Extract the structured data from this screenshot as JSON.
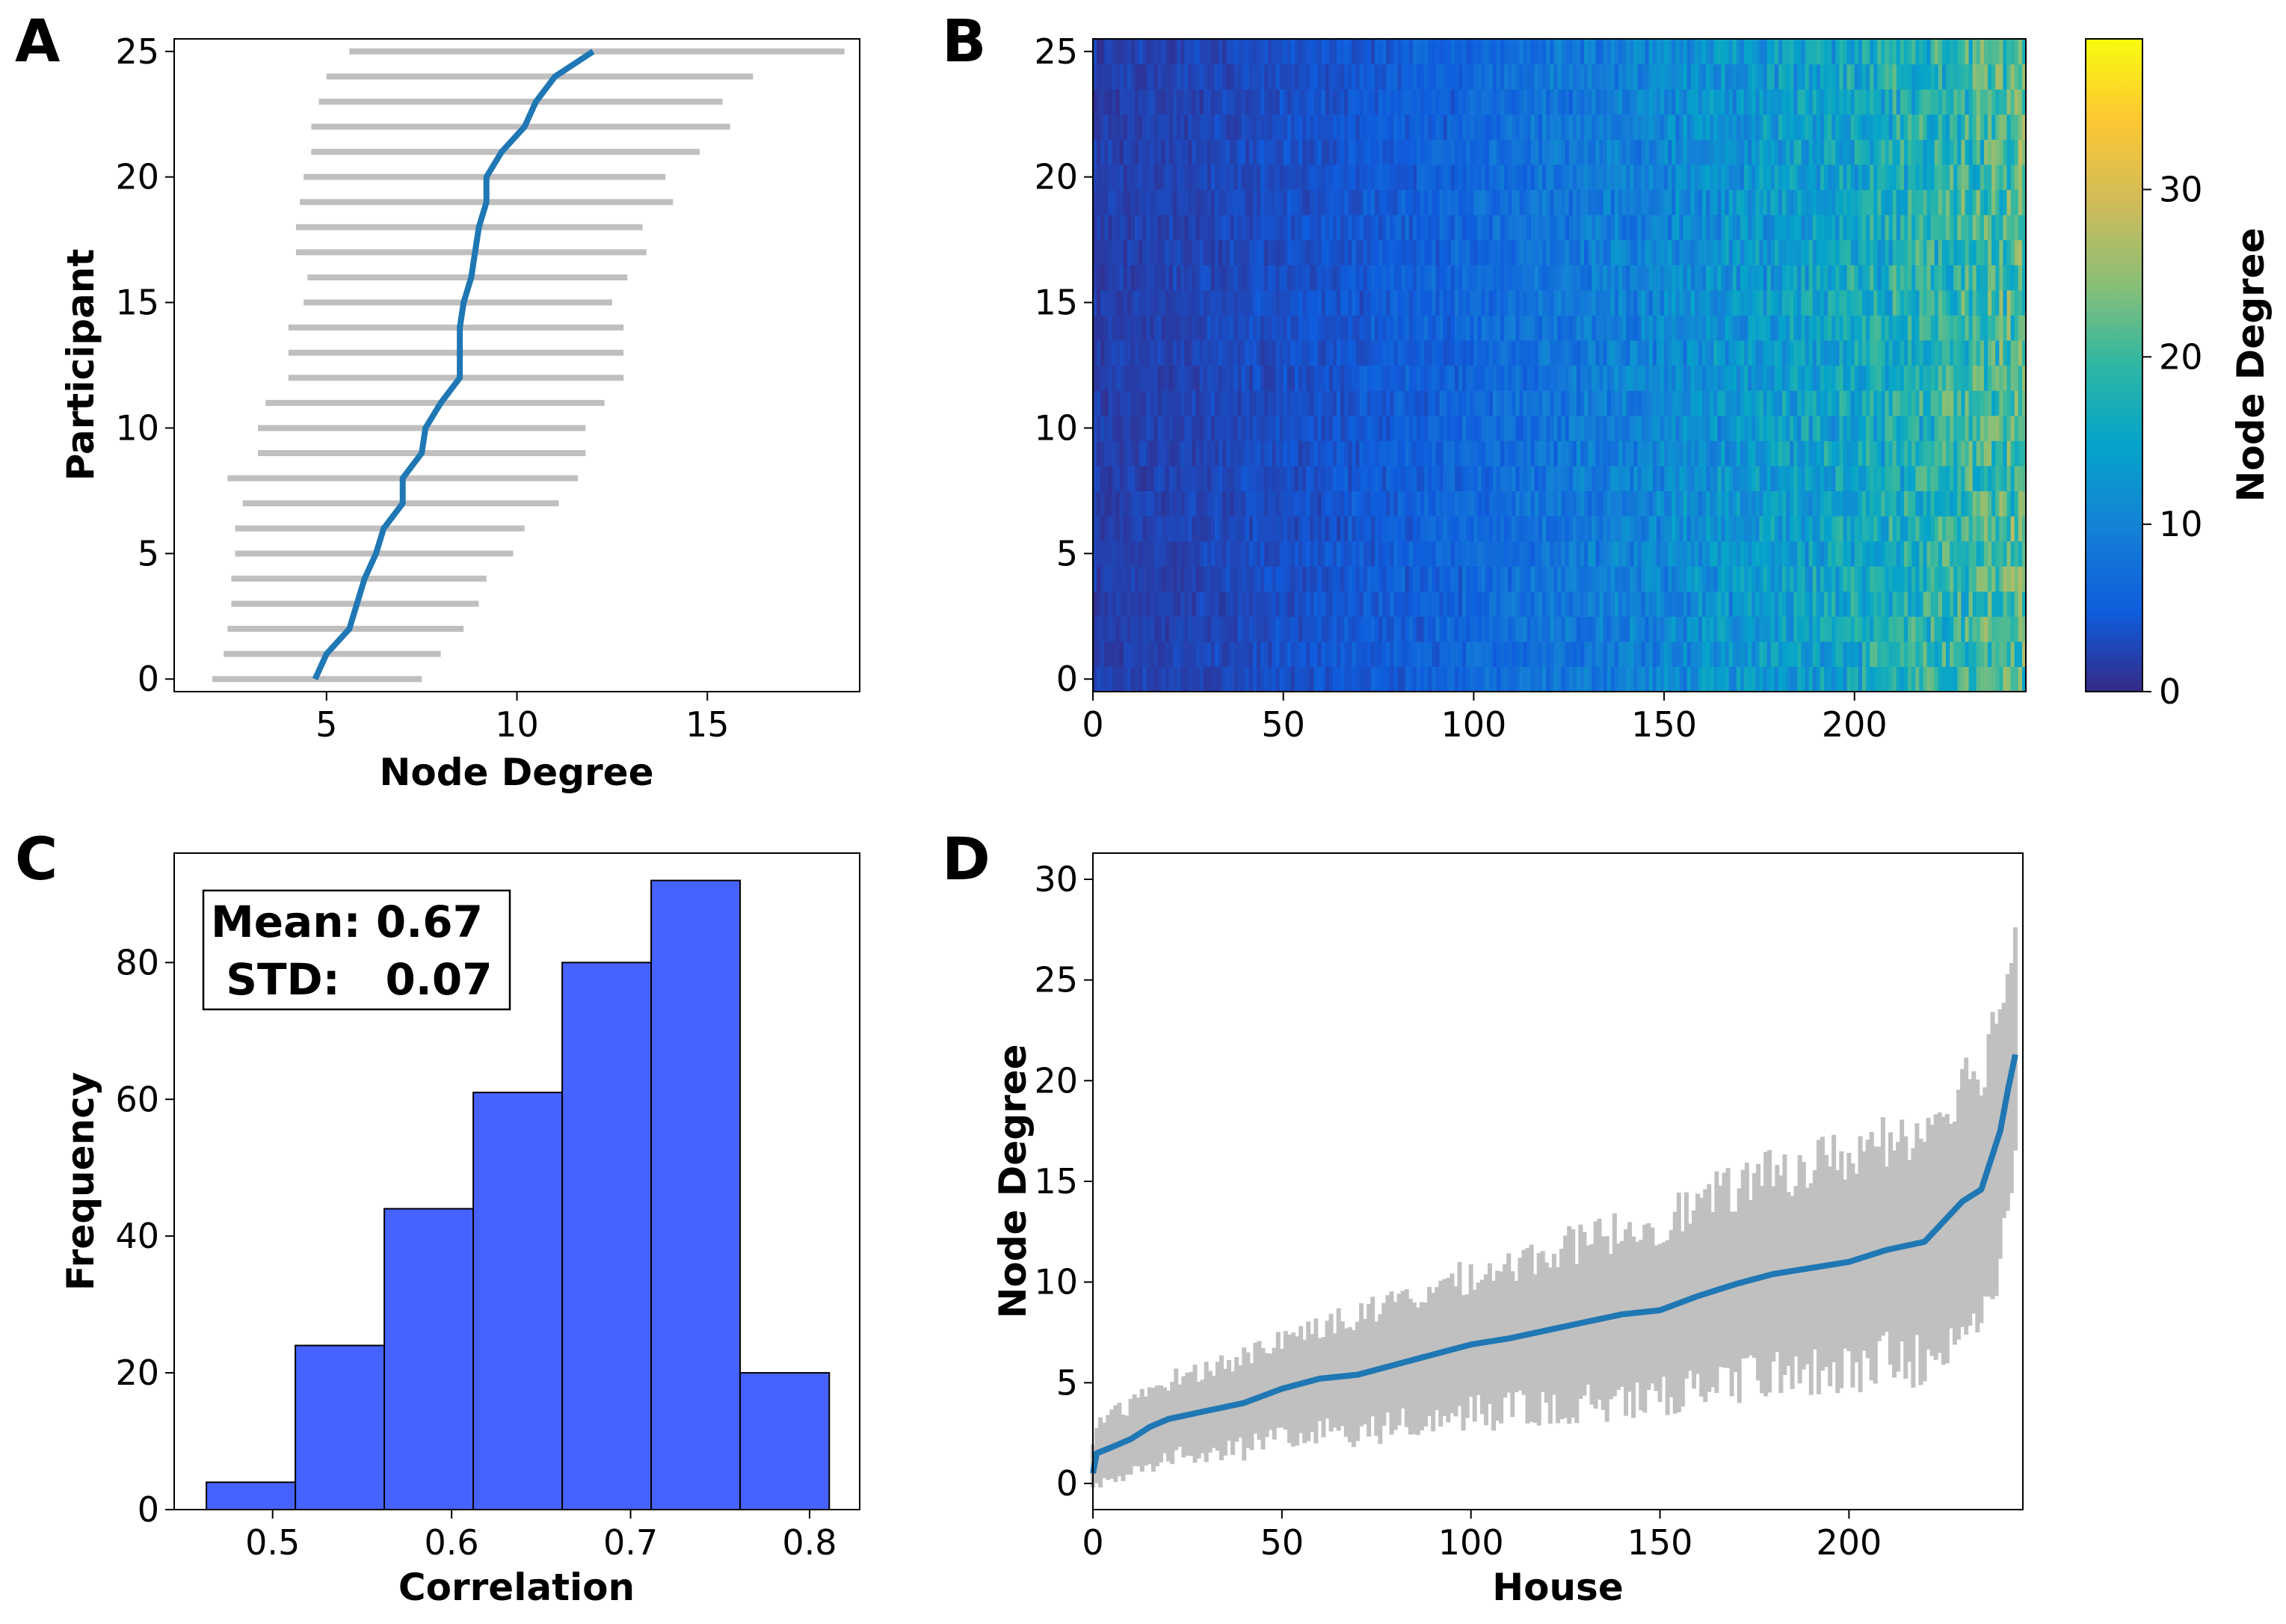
{
  "panels": [
    {
      "letter": "A",
      "chart_data": {
        "type": "line",
        "xlabel": "Node Degree",
        "ylabel": "Participant",
        "xlim": [
          1.0,
          19.0
        ],
        "ylim": [
          -0.5,
          25.5
        ],
        "xticks": [
          5,
          10,
          15
        ],
        "yticks": [
          0,
          5,
          10,
          15,
          20,
          25
        ],
        "series": [
          {
            "kind": "mean_line",
            "color": "#1f77b4",
            "y": [
              0,
              1,
              2,
              3,
              4,
              5,
              6,
              7,
              8,
              9,
              10,
              11,
              12,
              13,
              14,
              15,
              16,
              17,
              18,
              19,
              20,
              21,
              22,
              23,
              24,
              25
            ],
            "x": [
              4.7,
              5.0,
              5.6,
              5.8,
              6.0,
              6.3,
              6.5,
              7.0,
              7.0,
              7.5,
              7.6,
              8.0,
              8.5,
              8.5,
              8.5,
              8.6,
              8.8,
              8.9,
              9.0,
              9.2,
              9.2,
              9.6,
              10.2,
              10.5,
              11.0,
              12.0
            ]
          },
          {
            "kind": "range_bars",
            "color": "#bfbfbf",
            "y": [
              0,
              1,
              2,
              3,
              4,
              5,
              6,
              7,
              8,
              9,
              10,
              11,
              12,
              13,
              14,
              15,
              16,
              17,
              18,
              19,
              20,
              21,
              22,
              23,
              24,
              25
            ],
            "min": [
              2.0,
              2.3,
              2.4,
              2.5,
              2.5,
              2.6,
              2.6,
              2.8,
              2.4,
              3.2,
              3.2,
              3.4,
              4.0,
              4.0,
              4.0,
              4.4,
              4.5,
              4.2,
              4.2,
              4.3,
              4.4,
              4.6,
              4.6,
              4.8,
              5.0,
              5.6
            ],
            "max": [
              7.5,
              8.0,
              8.6,
              9.0,
              9.2,
              9.9,
              10.2,
              11.1,
              11.6,
              11.8,
              11.8,
              12.3,
              12.8,
              12.8,
              12.8,
              12.5,
              12.9,
              13.4,
              13.3,
              14.1,
              13.9,
              14.8,
              15.6,
              15.4,
              16.2,
              18.6
            ]
          }
        ]
      }
    },
    {
      "letter": "B",
      "chart_data": {
        "type": "heatmap",
        "xlabel": "",
        "ylabel": "",
        "xlim": [
          0,
          245
        ],
        "ylim": [
          -0.5,
          25.5
        ],
        "xticks": [
          0,
          50,
          100,
          150,
          200
        ],
        "yticks": [
          0,
          5,
          10,
          15,
          20,
          25
        ],
        "n_rows": 26,
        "n_cols": 245,
        "colormap": "parula",
        "value_trend": {
          "start": 2.0,
          "end": 21.0
        },
        "colorbar": {
          "label": "Node Degree",
          "min": 0,
          "max": 39,
          "ticks": [
            0,
            10,
            20,
            30
          ]
        }
      }
    },
    {
      "letter": "C",
      "chart_data": {
        "type": "bar",
        "subtype": "histogram",
        "xlabel": "Correlation",
        "ylabel": "Frequency",
        "xlim": [
          0.445,
          0.828
        ],
        "ylim": [
          0,
          96
        ],
        "xticks": [
          0.5,
          0.6,
          0.7,
          0.8
        ],
        "yticks": [
          0,
          20,
          40,
          60,
          80
        ],
        "bin_edges": [
          0.463,
          0.5127,
          0.5624,
          0.6121,
          0.6618,
          0.7115,
          0.7612,
          0.811
        ],
        "values": [
          4,
          24,
          44,
          61,
          80,
          92,
          20
        ],
        "color": "#4763ff",
        "annotation": [
          "Mean: 0.67",
          " STD:   0.07"
        ]
      }
    },
    {
      "letter": "D",
      "chart_data": {
        "type": "line",
        "xlabel": "House",
        "ylabel": "Node Degree",
        "xlim": [
          0,
          246
        ],
        "ylim": [
          -1.3,
          31.3
        ],
        "xticks": [
          0,
          50,
          100,
          150,
          200
        ],
        "yticks": [
          0,
          5,
          10,
          15,
          20,
          25,
          30
        ],
        "series": [
          {
            "kind": "mean_line",
            "color": "#1f77b4",
            "x": [
              0,
              1,
              5,
              10,
              15,
              20,
              30,
              40,
              50,
              60,
              70,
              80,
              90,
              100,
              110,
              120,
              130,
              140,
              150,
              160,
              170,
              180,
              190,
              200,
              210,
              220,
              225,
              230,
              235,
              240,
              242,
              244
            ],
            "y": [
              0.5,
              1.5,
              1.8,
              2.2,
              2.8,
              3.2,
              3.6,
              4.0,
              4.7,
              5.2,
              5.4,
              5.9,
              6.4,
              6.9,
              7.2,
              7.6,
              8.0,
              8.4,
              8.6,
              9.3,
              9.9,
              10.4,
              10.7,
              11.0,
              11.6,
              12.0,
              13.0,
              14.0,
              14.6,
              17.5,
              19.5,
              21.3
            ]
          },
          {
            "kind": "range_band",
            "color": "#c0c0c0",
            "half_width_start": 1.6,
            "half_width_end": 6.5
          }
        ]
      }
    }
  ]
}
